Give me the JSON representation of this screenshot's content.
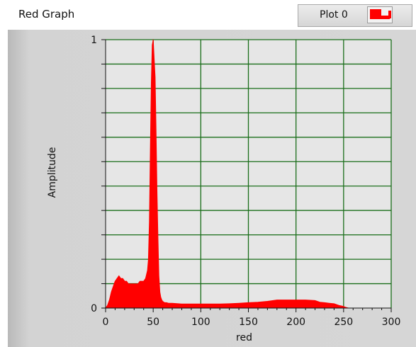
{
  "graph": {
    "title": "Red Graph",
    "legend": {
      "plot_name": "Plot 0",
      "color": "#ff0000"
    }
  },
  "chart_data": {
    "type": "area",
    "title": "",
    "xlabel": "red",
    "ylabel": "Amplitude",
    "xlim": [
      0,
      300
    ],
    "ylim": [
      0,
      1
    ],
    "x_ticks": [
      "0",
      "50",
      "100",
      "150",
      "200",
      "250",
      "300"
    ],
    "y_ticks": [
      "0",
      "1"
    ],
    "grid": true,
    "grid_color": "#1a6e1a",
    "plot_background": "#e6e6e6",
    "series": [
      {
        "color": "#ff0000",
        "x": [
          0,
          2,
          4,
          6,
          8,
          10,
          12,
          14,
          16,
          18,
          20,
          22,
          24,
          26,
          28,
          30,
          32,
          34,
          36,
          38,
          40,
          42,
          44,
          45,
          46,
          47,
          48,
          49,
          50,
          51,
          52,
          53,
          54,
          55,
          56,
          57,
          58,
          59,
          60,
          62,
          64,
          66,
          70,
          80,
          90,
          100,
          110,
          120,
          130,
          140,
          150,
          160,
          170,
          180,
          190,
          200,
          210,
          220,
          225,
          230,
          235,
          240,
          245,
          250,
          252,
          255
        ],
        "values": [
          0.0,
          0.01,
          0.03,
          0.06,
          0.08,
          0.1,
          0.11,
          0.12,
          0.11,
          0.11,
          0.1,
          0.1,
          0.09,
          0.09,
          0.09,
          0.09,
          0.09,
          0.09,
          0.1,
          0.1,
          0.1,
          0.11,
          0.14,
          0.18,
          0.32,
          0.58,
          0.84,
          0.98,
          1.0,
          0.93,
          0.86,
          0.66,
          0.44,
          0.26,
          0.12,
          0.06,
          0.04,
          0.03,
          0.025,
          0.02,
          0.02,
          0.018,
          0.018,
          0.015,
          0.015,
          0.015,
          0.015,
          0.015,
          0.016,
          0.018,
          0.02,
          0.022,
          0.025,
          0.03,
          0.03,
          0.03,
          0.03,
          0.028,
          0.022,
          0.02,
          0.018,
          0.016,
          0.01,
          0.006,
          0.003,
          0.0
        ]
      }
    ]
  }
}
